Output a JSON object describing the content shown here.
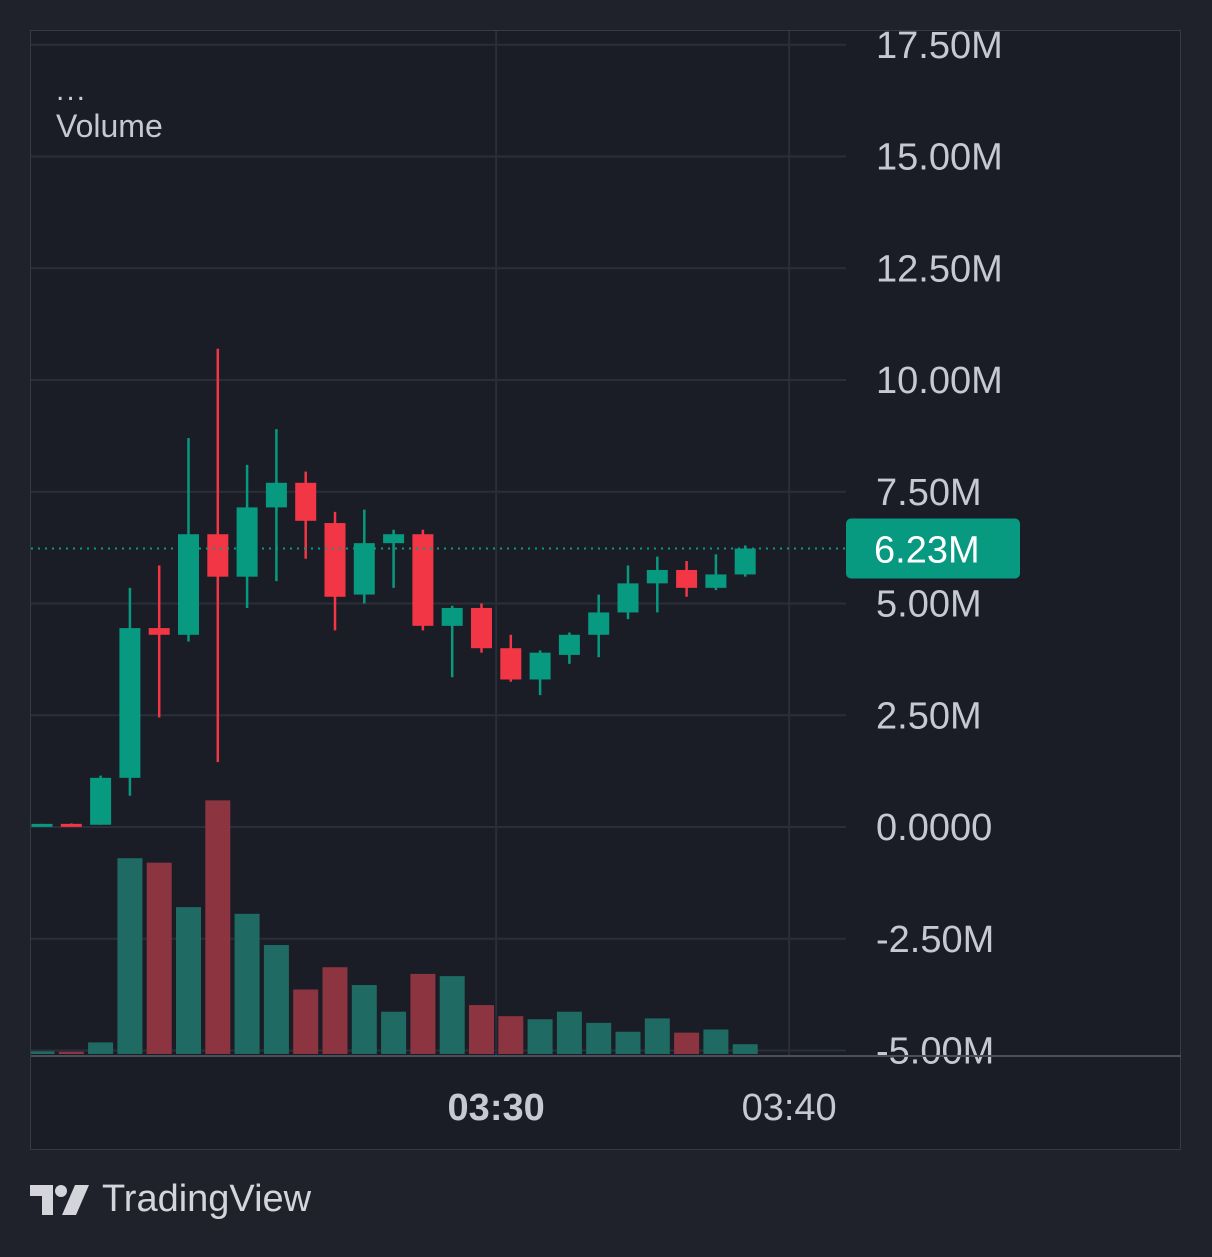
{
  "chart_data": {
    "type": "candlestick",
    "legend": {
      "menu_label": "...",
      "volume_label": "Volume"
    },
    "y_axis": {
      "ticks": [
        "17.50M",
        "15.00M",
        "12.50M",
        "10.00M",
        "7.50M",
        "5.00M",
        "2.50M",
        "0.0000",
        "-2.50M",
        "-5.00M"
      ],
      "tick_values": [
        17.5,
        15.0,
        12.5,
        10.0,
        7.5,
        5.0,
        2.5,
        0.0,
        -2.5,
        -5.0
      ],
      "unit": "M",
      "range": [
        -5.3,
        18.0
      ]
    },
    "x_axis": {
      "ticks": [
        {
          "label": "03:30",
          "bar_index": 15.5,
          "bold": true
        },
        {
          "label": "03:40",
          "bar_index": 25.5,
          "bold": false
        }
      ]
    },
    "last_price": {
      "value": 6.23,
      "label": "6.23M",
      "color": "#089981"
    },
    "colors": {
      "up": "#089981",
      "down": "#f23645",
      "volume_up": "#1f6b63",
      "volume_down": "#8c3440",
      "grid": "#2b2e38",
      "axis_text": "#c6c9d1"
    },
    "candles": [
      {
        "o": 0.05,
        "h": 0.07,
        "l": 0.03,
        "c": 0.07,
        "v": 0.06
      },
      {
        "o": 0.07,
        "h": 0.08,
        "l": 0.04,
        "c": 0.05,
        "v": 0.05
      },
      {
        "o": 0.05,
        "h": 1.15,
        "l": 0.05,
        "c": 1.1,
        "v": 0.26
      },
      {
        "o": 1.1,
        "h": 5.35,
        "l": 0.7,
        "c": 4.45,
        "v": 4.4
      },
      {
        "o": 4.45,
        "h": 5.85,
        "l": 2.45,
        "c": 4.3,
        "v": 4.3
      },
      {
        "o": 4.3,
        "h": 8.7,
        "l": 4.15,
        "c": 6.55,
        "v": 3.3
      },
      {
        "o": 6.55,
        "h": 10.7,
        "l": 1.45,
        "c": 5.6,
        "v": 5.7
      },
      {
        "o": 5.6,
        "h": 8.1,
        "l": 4.9,
        "c": 7.15,
        "v": 3.15
      },
      {
        "o": 7.15,
        "h": 8.9,
        "l": 5.5,
        "c": 7.7,
        "v": 2.45
      },
      {
        "o": 7.7,
        "h": 7.95,
        "l": 6.0,
        "c": 6.85,
        "v": 1.45
      },
      {
        "o": 6.8,
        "h": 7.05,
        "l": 4.4,
        "c": 5.15,
        "v": 1.95
      },
      {
        "o": 5.2,
        "h": 7.1,
        "l": 5.0,
        "c": 6.35,
        "v": 1.55
      },
      {
        "o": 6.35,
        "h": 6.65,
        "l": 5.35,
        "c": 6.55,
        "v": 0.95
      },
      {
        "o": 6.55,
        "h": 6.65,
        "l": 4.4,
        "c": 4.5,
        "v": 1.8
      },
      {
        "o": 4.5,
        "h": 4.95,
        "l": 3.35,
        "c": 4.9,
        "v": 1.75
      },
      {
        "o": 4.9,
        "h": 5.0,
        "l": 3.9,
        "c": 4.0,
        "v": 1.1
      },
      {
        "o": 4.0,
        "h": 4.3,
        "l": 3.25,
        "c": 3.3,
        "v": 0.85
      },
      {
        "o": 3.3,
        "h": 3.95,
        "l": 2.95,
        "c": 3.9,
        "v": 0.78
      },
      {
        "o": 3.85,
        "h": 4.35,
        "l": 3.65,
        "c": 4.3,
        "v": 0.95
      },
      {
        "o": 4.3,
        "h": 5.2,
        "l": 3.8,
        "c": 4.8,
        "v": 0.7
      },
      {
        "o": 4.8,
        "h": 5.85,
        "l": 4.65,
        "c": 5.45,
        "v": 0.5
      },
      {
        "o": 5.45,
        "h": 6.05,
        "l": 4.8,
        "c": 5.75,
        "v": 0.8
      },
      {
        "o": 5.75,
        "h": 5.95,
        "l": 5.15,
        "c": 5.35,
        "v": 0.48
      },
      {
        "o": 5.35,
        "h": 6.1,
        "l": 5.3,
        "c": 5.65,
        "v": 0.55
      },
      {
        "o": 5.65,
        "h": 6.3,
        "l": 5.6,
        "c": 6.23,
        "v": 0.22
      }
    ]
  },
  "footer": {
    "brand_label": "TradingView"
  }
}
